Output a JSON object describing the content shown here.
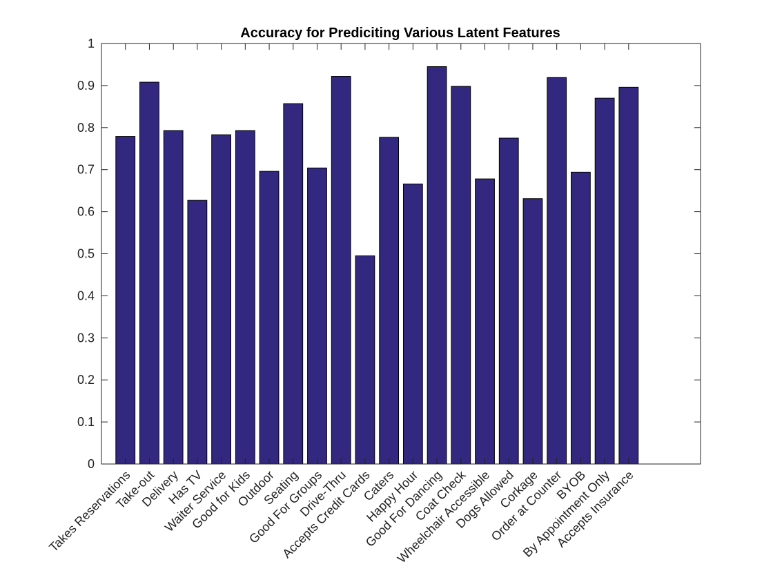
{
  "chart_data": {
    "type": "bar",
    "title": "Accuracy for Prediciting Various Latent Features",
    "xlabel": "",
    "ylabel": "",
    "ylim": [
      0,
      1
    ],
    "yticks": [
      "0",
      "0.1",
      "0.2",
      "0.3",
      "0.4",
      "0.5",
      "0.6",
      "0.7",
      "0.8",
      "0.9",
      "1"
    ],
    "categories": [
      "Takes Reservations",
      "Take-out",
      "Delivery",
      "Has TV",
      "Waiter Service",
      "Good for Kids",
      "Outdoor",
      "Seating",
      "Good For Groups",
      "Drive-Thru",
      "Accepts Credit Cards",
      "Caters",
      "Happy Hour",
      "Good For Dancing",
      "Coat Check",
      "Wheelchair Accessible",
      "Dogs Allowed",
      "Corkage",
      "Order at Counter",
      "BYOB",
      "By Appointment Only",
      "Accepts Insurance"
    ],
    "values": [
      0.779,
      0.908,
      0.793,
      0.627,
      0.783,
      0.793,
      0.696,
      0.857,
      0.704,
      0.922,
      0.495,
      0.777,
      0.666,
      0.945,
      0.898,
      0.678,
      0.775,
      0.631,
      0.919,
      0.694,
      0.87,
      0.896
    ],
    "bar_color": "#33287f",
    "grid": false,
    "legend": "none"
  }
}
